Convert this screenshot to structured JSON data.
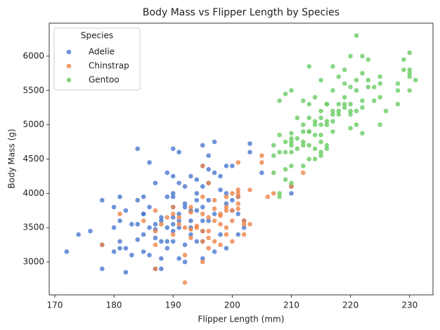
{
  "chart_data": {
    "type": "scatter",
    "title": "Body Mass vs Flipper Length by Species",
    "x_label": "Flipper Length (mm)",
    "y_label": "Body Mass (g)",
    "legend_title": "Species",
    "legend": "upper left",
    "xlim": [
      169.05,
      233.95
    ],
    "ylim": [
      2520,
      6480
    ],
    "xticks": [
      170,
      180,
      190,
      200,
      210,
      220,
      230
    ],
    "yticks": [
      3000,
      3500,
      4000,
      4500,
      5000,
      5500,
      6000
    ],
    "series": [
      {
        "name": "Adelie",
        "color": "#4878d0",
        "x": [
          172,
          174,
          176,
          178,
          178,
          178,
          180,
          180,
          181,
          181,
          181,
          182,
          182,
          182,
          183,
          184,
          184,
          184,
          185,
          185,
          185,
          185,
          186,
          186,
          186,
          186,
          187,
          187,
          187,
          187,
          188,
          188,
          188,
          188,
          189,
          189,
          189,
          189,
          190,
          190,
          190,
          190,
          190,
          190,
          190,
          190,
          191,
          191,
          191,
          191,
          191,
          192,
          192,
          192,
          192,
          193,
          193,
          193,
          193,
          194,
          194,
          194,
          194,
          195,
          195,
          195,
          195,
          195,
          195,
          195,
          196,
          196,
          196,
          196,
          196,
          197,
          197,
          197,
          197,
          198,
          198,
          198,
          199,
          199,
          199,
          199,
          200,
          200,
          200,
          201,
          201,
          201,
          202,
          203,
          203,
          205,
          210,
          210,
          202,
          191,
          184,
          185,
          187,
          195,
          190,
          192,
          193,
          194,
          189,
          180,
          181,
          183,
          188
        ],
        "values": [
          3150,
          3400,
          3450,
          3900,
          2900,
          3250,
          3800,
          3500,
          3600,
          3950,
          3300,
          3200,
          3750,
          2850,
          3550,
          3900,
          4650,
          3550,
          3700,
          3950,
          3400,
          3150,
          3800,
          4450,
          3500,
          3100,
          3350,
          2900,
          3550,
          4150,
          3300,
          2900,
          3600,
          3050,
          3500,
          3950,
          3200,
          4300,
          3450,
          3800,
          4000,
          3650,
          4250,
          3550,
          3300,
          4650,
          3050,
          4600,
          3500,
          3700,
          4150,
          3250,
          3850,
          3000,
          4100,
          3400,
          3500,
          4250,
          3600,
          3300,
          4200,
          4000,
          3750,
          3450,
          3800,
          4100,
          3300,
          4700,
          4400,
          3050,
          4350,
          4550,
          3900,
          3600,
          4150,
          4300,
          3700,
          3150,
          4750,
          4050,
          4250,
          3400,
          4000,
          4400,
          3850,
          3200,
          3900,
          4400,
          3750,
          3950,
          3700,
          3400,
          3600,
          4725,
          4600,
          4300,
          4000,
          4100,
          3500,
          3600,
          3325,
          3700,
          3475,
          3600,
          3950,
          3800,
          3750,
          3900,
          3300,
          3150,
          3200,
          3100,
          3650
        ]
      },
      {
        "name": "Chinstrap",
        "color": "#ee854a",
        "x": [
          178,
          181,
          185,
          187,
          187,
          188,
          189,
          190,
          190,
          191,
          192,
          192,
          193,
          193,
          194,
          195,
          195,
          195,
          195,
          196,
          196,
          196,
          197,
          197,
          197,
          198,
          198,
          198,
          199,
          199,
          199,
          200,
          200,
          201,
          201,
          201,
          201,
          201,
          202,
          202,
          203,
          203,
          205,
          205,
          206,
          207,
          210,
          212,
          187,
          190,
          193,
          194,
          196,
          198,
          191,
          192,
          197,
          199,
          200,
          187,
          195,
          193,
          202,
          201,
          200,
          199,
          196,
          195
        ],
        "values": [
          3250,
          3700,
          3600,
          2900,
          3450,
          3550,
          3650,
          3400,
          3700,
          3650,
          2700,
          3500,
          3800,
          3725,
          3525,
          3700,
          3950,
          4400,
          3300,
          4150,
          3450,
          3350,
          3775,
          3300,
          3600,
          3700,
          3675,
          3550,
          3750,
          3800,
          3950,
          3300,
          4000,
          4050,
          4450,
          3775,
          3950,
          3850,
          3550,
          3400,
          3550,
          4050,
          4450,
          4550,
          3950,
          4000,
          4100,
          4300,
          3750,
          3800,
          3475,
          3500,
          3650,
          3250,
          3550,
          3100,
          3900,
          3500,
          3600,
          3250,
          3000,
          3350,
          3600,
          4000,
          3750,
          3400,
          3200,
          3450
        ]
      },
      {
        "name": "Gentoo",
        "color": "#6acc64",
        "x": [
          207,
          207,
          207,
          208,
          208,
          208,
          208,
          208,
          209,
          209,
          209,
          209,
          210,
          210,
          210,
          210,
          210,
          210,
          210,
          211,
          211,
          211,
          212,
          212,
          212,
          212,
          212,
          213,
          213,
          213,
          213,
          213,
          213,
          214,
          214,
          214,
          214,
          214,
          215,
          215,
          215,
          215,
          215,
          215,
          215,
          216,
          216,
          216,
          216,
          216,
          217,
          217,
          217,
          217,
          217,
          218,
          218,
          218,
          219,
          219,
          219,
          219,
          220,
          220,
          220,
          220,
          220,
          221,
          221,
          221,
          221,
          221,
          222,
          222,
          222,
          222,
          222,
          223,
          223,
          223,
          224,
          224,
          225,
          225,
          225,
          225,
          226,
          228,
          228,
          228,
          229,
          229,
          230,
          230,
          230,
          230,
          231,
          230,
          212,
          215,
          216,
          218,
          219,
          220,
          217,
          214,
          213,
          210,
          209
        ],
        "values": [
          4700,
          4550,
          4300,
          4000,
          3950,
          5350,
          4600,
          4850,
          4350,
          4750,
          5450,
          4200,
          4600,
          4750,
          5500,
          4800,
          4150,
          4700,
          4400,
          4650,
          4800,
          5100,
          4900,
          4750,
          5350,
          4400,
          5000,
          4700,
          4900,
          5300,
          5850,
          5100,
          4500,
          4850,
          5050,
          5400,
          4650,
          4500,
          5000,
          4850,
          5100,
          5200,
          5650,
          4550,
          4750,
          4650,
          5050,
          5300,
          5000,
          4700,
          5200,
          5500,
          5850,
          4900,
          5050,
          5300,
          5700,
          5150,
          5250,
          5600,
          5400,
          5800,
          5550,
          6000,
          5300,
          5150,
          4950,
          5200,
          6300,
          5650,
          5500,
          5000,
          5250,
          5350,
          6000,
          4875,
          5750,
          5550,
          5950,
          5650,
          5550,
          5350,
          5700,
          5400,
          5600,
          5000,
          5200,
          5600,
          5300,
          5500,
          5950,
          5800,
          5750,
          5800,
          6050,
          5500,
          5650,
          5700,
          4700,
          4600,
          5300,
          5200,
          5300,
          5200,
          5150,
          5000,
          4900,
          4875,
          4600
        ]
      }
    ]
  }
}
